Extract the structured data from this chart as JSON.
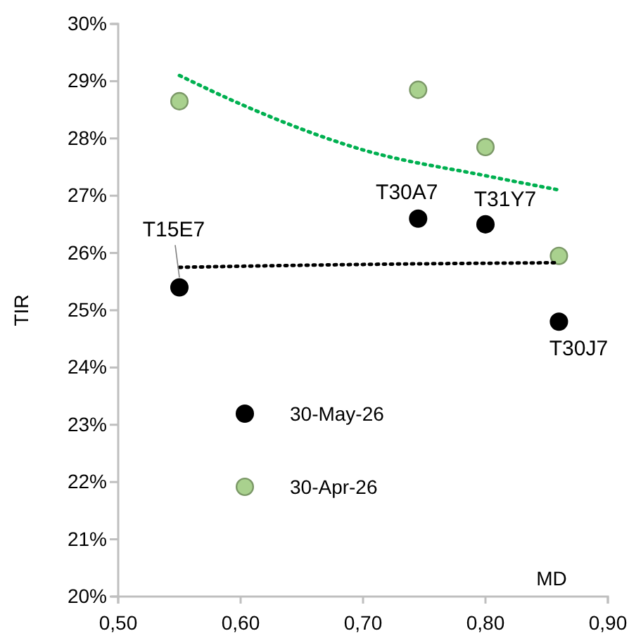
{
  "chart_data": {
    "type": "scatter",
    "xlabel": "MD",
    "ylabel": "TIR",
    "legend": "bottom left",
    "grid": false,
    "xlim": [
      0.5,
      0.9
    ],
    "xticks": [
      {
        "value": 0.5,
        "label": "0,50"
      },
      {
        "value": 0.6,
        "label": "0,60"
      },
      {
        "value": 0.7,
        "label": "0,70"
      },
      {
        "value": 0.8,
        "label": "0,80"
      },
      {
        "value": 0.9,
        "label": "0,90"
      }
    ],
    "ylim": [
      20,
      30
    ],
    "yticks": [
      {
        "value": 20,
        "label": "20%"
      },
      {
        "value": 21,
        "label": "21%"
      },
      {
        "value": 22,
        "label": "22%"
      },
      {
        "value": 23,
        "label": "23%"
      },
      {
        "value": 24,
        "label": "24%"
      },
      {
        "value": 25,
        "label": "25%"
      },
      {
        "value": 26,
        "label": "26%"
      },
      {
        "value": 27,
        "label": "27%"
      },
      {
        "value": 28,
        "label": "28%"
      },
      {
        "value": 29,
        "label": "29%"
      },
      {
        "value": 30,
        "label": "30%"
      }
    ],
    "series": [
      {
        "name": "30-May-26",
        "marker": "circle",
        "color": "#000000",
        "x": [
          0.55,
          0.745,
          0.8,
          0.86
        ],
        "values": [
          25.4,
          26.6,
          26.5,
          24.8
        ]
      },
      {
        "name": "30-Apr-26",
        "marker": "circle",
        "color": "#a9d18e",
        "x": [
          0.55,
          0.745,
          0.8,
          0.86
        ],
        "values": [
          28.65,
          28.85,
          27.85,
          25.95
        ]
      },
      {
        "type": "line",
        "marker": "none",
        "line_style": "dotted",
        "color": "#000000",
        "x": [
          0.55,
          0.7,
          0.86
        ],
        "values": [
          25.75,
          25.8,
          25.83
        ]
      },
      {
        "type": "line",
        "marker": "none",
        "line_style": "dotted",
        "color": "#00b050",
        "x": [
          0.55,
          0.6,
          0.7,
          0.8,
          0.86
        ],
        "values": [
          29.1,
          28.6,
          27.8,
          27.35,
          27.1
        ]
      }
    ],
    "annotations": [
      {
        "text": "T15E7",
        "x": 0.55,
        "y": 25.4
      },
      {
        "text": "T30A7",
        "x": 0.745,
        "y": 26.6
      },
      {
        "text": "T31Y7",
        "x": 0.8,
        "y": 26.5
      },
      {
        "text": "T30J7",
        "x": 0.86,
        "y": 24.8
      }
    ]
  }
}
